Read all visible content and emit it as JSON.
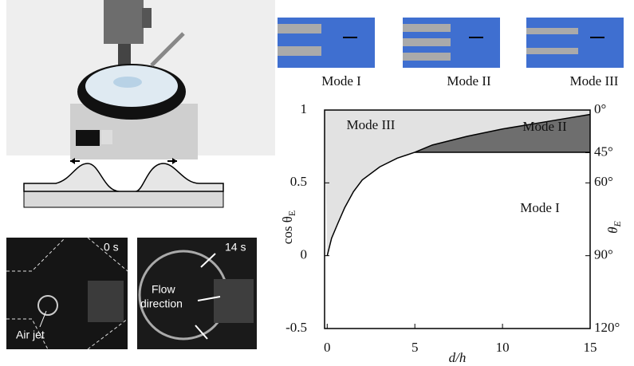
{
  "panels": {
    "modes": [
      "Mode I",
      "Mode II",
      "Mode III"
    ],
    "photo_times": [
      "0 s",
      "14 s"
    ],
    "air_jet": "Air jet",
    "flow": [
      "Flow",
      "direction"
    ]
  },
  "chart_data": {
    "type": "phase",
    "xlabel": "d/h",
    "ylabel": "cos θ",
    "ylabel_subscript": "E",
    "y2label": "θ",
    "y2label_subscript": "E",
    "xlim": [
      -0.15,
      15
    ],
    "ylim": [
      -0.5,
      1
    ],
    "xticks": [
      0,
      5,
      10,
      15
    ],
    "yticks": [
      {
        "value": -0.5,
        "label": "-0.5"
      },
      0,
      0.5,
      1
    ],
    "y2scale": "cos",
    "y2ticks": [
      {
        "value": 0,
        "label": "0°"
      },
      {
        "value": 45,
        "label": "45°"
      },
      {
        "value": 60,
        "label": "60°"
      },
      {
        "value": 90,
        "label": "90°"
      },
      {
        "value": 120,
        "label": "120°"
      }
    ],
    "boundary": {
      "x": [
        0,
        0.25,
        0.6,
        1,
        1.5,
        2,
        3,
        4,
        5,
        6,
        8,
        10,
        12,
        15
      ],
      "values": [
        0,
        0.12,
        0.22,
        0.33,
        0.44,
        0.52,
        0.61,
        0.67,
        0.71,
        0.76,
        0.82,
        0.87,
        0.91,
        0.97
      ],
      "color": "#000000"
    },
    "threshold": 0.71,
    "regions": [
      {
        "name": "Mode III",
        "color": "#e2e2e2"
      },
      {
        "name": "Mode II",
        "color": "#6e6e6e"
      },
      {
        "name": "Mode I",
        "color": "#ffffff"
      }
    ]
  }
}
